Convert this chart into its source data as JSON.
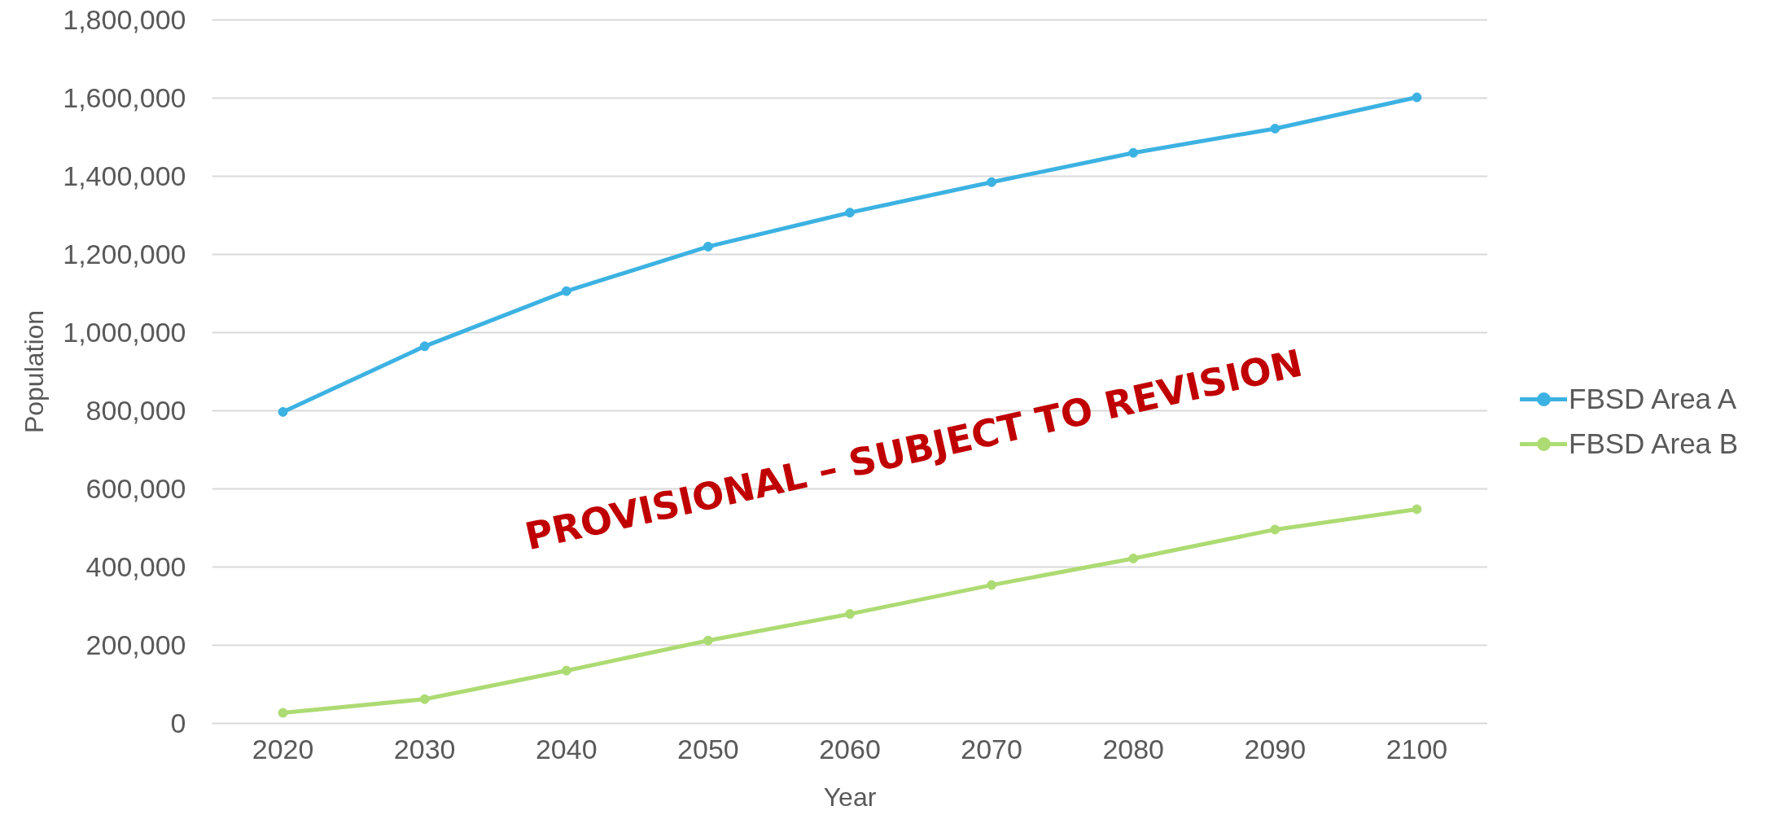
{
  "chart_data": {
    "type": "line",
    "xlabel": "Year",
    "ylabel": "Population",
    "categories": [
      "2020",
      "2030",
      "2040",
      "2050",
      "2060",
      "2070",
      "2080",
      "2090",
      "2100"
    ],
    "series": [
      {
        "name": "FBSD Area A",
        "color": "#3cb2e2",
        "values": [
          797000,
          965000,
          1106000,
          1220000,
          1307000,
          1385000,
          1460000,
          1522000,
          1602000
        ]
      },
      {
        "name": "FBSD Area B",
        "color": "#addb73",
        "values": [
          27000,
          62000,
          135000,
          212000,
          280000,
          354000,
          422000,
          496000,
          548000
        ]
      }
    ],
    "ylim": [
      0,
      1800000
    ],
    "yticks": [
      {
        "value": 0,
        "label": "0"
      },
      {
        "value": 200000,
        "label": "200,000"
      },
      {
        "value": 400000,
        "label": "400,000"
      },
      {
        "value": 600000,
        "label": "600,000"
      },
      {
        "value": 800000,
        "label": "800,000"
      },
      {
        "value": 1000000,
        "label": "1,000,000"
      },
      {
        "value": 1200000,
        "label": "1,200,000"
      },
      {
        "value": 1400000,
        "label": "1,400,000"
      },
      {
        "value": 1600000,
        "label": "1,600,000"
      },
      {
        "value": 1800000,
        "label": "1,800,000"
      }
    ],
    "grid": "y",
    "legend": "right",
    "marker": "circle",
    "line_style": "solid",
    "annotations": [
      "PROVISIONAL – SUBJECT TO REVISION"
    ]
  }
}
